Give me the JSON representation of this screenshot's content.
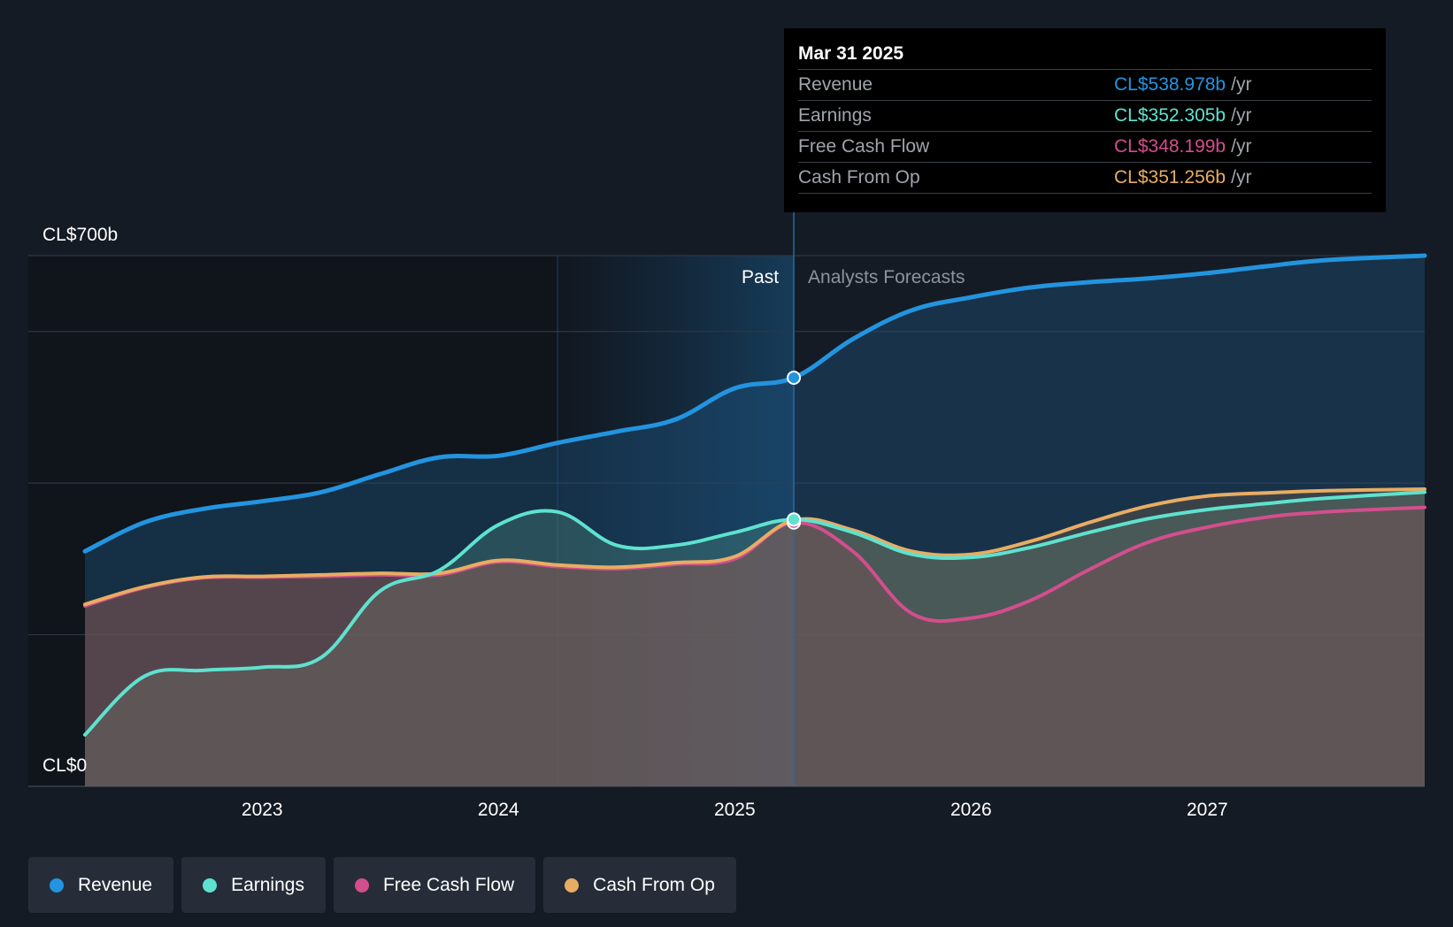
{
  "chart_data": {
    "type": "area",
    "currency_prefix": "CL$",
    "y_axis_labels": {
      "top": "CL$700b",
      "bottom": "CL$0"
    },
    "ylim": [
      0,
      700
    ],
    "xlim": [
      2022.25,
      2027.92
    ],
    "x_ticks": [
      {
        "value": 2023,
        "label": "2023"
      },
      {
        "value": 2024,
        "label": "2024"
      },
      {
        "value": 2025,
        "label": "2025"
      },
      {
        "value": 2026,
        "label": "2026"
      },
      {
        "value": 2027,
        "label": "2027"
      }
    ],
    "y_grid_values": [
      200,
      400,
      600,
      700
    ],
    "past_label": "Past",
    "forecast_label": "Analysts Forecasts",
    "past_region_start": 2024.25,
    "divider_x": 2025.25,
    "series": [
      {
        "name": "Revenue",
        "color": "#2394df",
        "points": [
          [
            2022.25,
            310
          ],
          [
            2022.5,
            348
          ],
          [
            2022.75,
            366
          ],
          [
            2023.0,
            376
          ],
          [
            2023.25,
            388
          ],
          [
            2023.5,
            412
          ],
          [
            2023.75,
            434
          ],
          [
            2024.0,
            436
          ],
          [
            2024.25,
            453
          ],
          [
            2024.5,
            468
          ],
          [
            2024.75,
            484
          ],
          [
            2025.0,
            525
          ],
          [
            2025.25,
            539
          ],
          [
            2025.5,
            590
          ],
          [
            2025.75,
            628
          ],
          [
            2026.0,
            645
          ],
          [
            2026.25,
            658
          ],
          [
            2026.5,
            665
          ],
          [
            2026.75,
            670
          ],
          [
            2027.0,
            677
          ],
          [
            2027.25,
            686
          ],
          [
            2027.5,
            694
          ],
          [
            2027.92,
            700
          ]
        ]
      },
      {
        "name": "Earnings",
        "color": "#5ee2cf",
        "points": [
          [
            2022.25,
            68
          ],
          [
            2022.5,
            145
          ],
          [
            2022.75,
            153
          ],
          [
            2023.0,
            157
          ],
          [
            2023.25,
            170
          ],
          [
            2023.5,
            258
          ],
          [
            2023.75,
            285
          ],
          [
            2024.0,
            345
          ],
          [
            2024.25,
            362
          ],
          [
            2024.5,
            318
          ],
          [
            2024.75,
            318
          ],
          [
            2025.0,
            335
          ],
          [
            2025.25,
            352
          ],
          [
            2025.5,
            335
          ],
          [
            2025.75,
            306
          ],
          [
            2026.0,
            302
          ],
          [
            2026.25,
            315
          ],
          [
            2026.5,
            335
          ],
          [
            2026.75,
            353
          ],
          [
            2027.0,
            365
          ],
          [
            2027.25,
            373
          ],
          [
            2027.5,
            380
          ],
          [
            2027.92,
            388
          ]
        ]
      },
      {
        "name": "Free Cash Flow",
        "color": "#d34e8d",
        "points": [
          [
            2022.25,
            238
          ],
          [
            2022.5,
            262
          ],
          [
            2022.75,
            275
          ],
          [
            2023.0,
            276
          ],
          [
            2023.25,
            277
          ],
          [
            2023.5,
            279
          ],
          [
            2023.75,
            279
          ],
          [
            2024.0,
            296
          ],
          [
            2024.25,
            290
          ],
          [
            2024.5,
            287
          ],
          [
            2024.75,
            293
          ],
          [
            2025.0,
            300
          ],
          [
            2025.25,
            348
          ],
          [
            2025.5,
            310
          ],
          [
            2025.75,
            228
          ],
          [
            2026.0,
            222
          ],
          [
            2026.25,
            245
          ],
          [
            2026.5,
            286
          ],
          [
            2026.75,
            322
          ],
          [
            2027.0,
            342
          ],
          [
            2027.25,
            355
          ],
          [
            2027.5,
            362
          ],
          [
            2027.92,
            368
          ]
        ]
      },
      {
        "name": "Cash From Op",
        "color": "#e8ad62",
        "points": [
          [
            2022.25,
            240
          ],
          [
            2022.5,
            263
          ],
          [
            2022.75,
            276
          ],
          [
            2023.0,
            277
          ],
          [
            2023.25,
            279
          ],
          [
            2023.5,
            281
          ],
          [
            2023.75,
            281
          ],
          [
            2024.0,
            298
          ],
          [
            2024.25,
            292
          ],
          [
            2024.5,
            289
          ],
          [
            2024.75,
            295
          ],
          [
            2025.0,
            303
          ],
          [
            2025.25,
            351
          ],
          [
            2025.5,
            338
          ],
          [
            2025.75,
            310
          ],
          [
            2026.0,
            306
          ],
          [
            2026.25,
            323
          ],
          [
            2026.5,
            348
          ],
          [
            2026.75,
            370
          ],
          [
            2027.0,
            383
          ],
          [
            2027.25,
            387
          ],
          [
            2027.5,
            390
          ],
          [
            2027.92,
            392
          ]
        ]
      }
    ]
  },
  "tooltip": {
    "date": "Mar 31 2025",
    "rows": [
      {
        "label": "Revenue",
        "value": "CL$538.978b",
        "unit": "/yr",
        "color": "#2394df"
      },
      {
        "label": "Earnings",
        "value": "CL$352.305b",
        "unit": "/yr",
        "color": "#5ee2cf"
      },
      {
        "label": "Free Cash Flow",
        "value": "CL$348.199b",
        "unit": "/yr",
        "color": "#d34e8d"
      },
      {
        "label": "Cash From Op",
        "value": "CL$351.256b",
        "unit": "/yr",
        "color": "#e8ad62"
      }
    ]
  },
  "legend": [
    {
      "label": "Revenue",
      "color": "#2394df"
    },
    {
      "label": "Earnings",
      "color": "#5ee2cf"
    },
    {
      "label": "Free Cash Flow",
      "color": "#d34e8d"
    },
    {
      "label": "Cash From Op",
      "color": "#e8ad62"
    }
  ]
}
